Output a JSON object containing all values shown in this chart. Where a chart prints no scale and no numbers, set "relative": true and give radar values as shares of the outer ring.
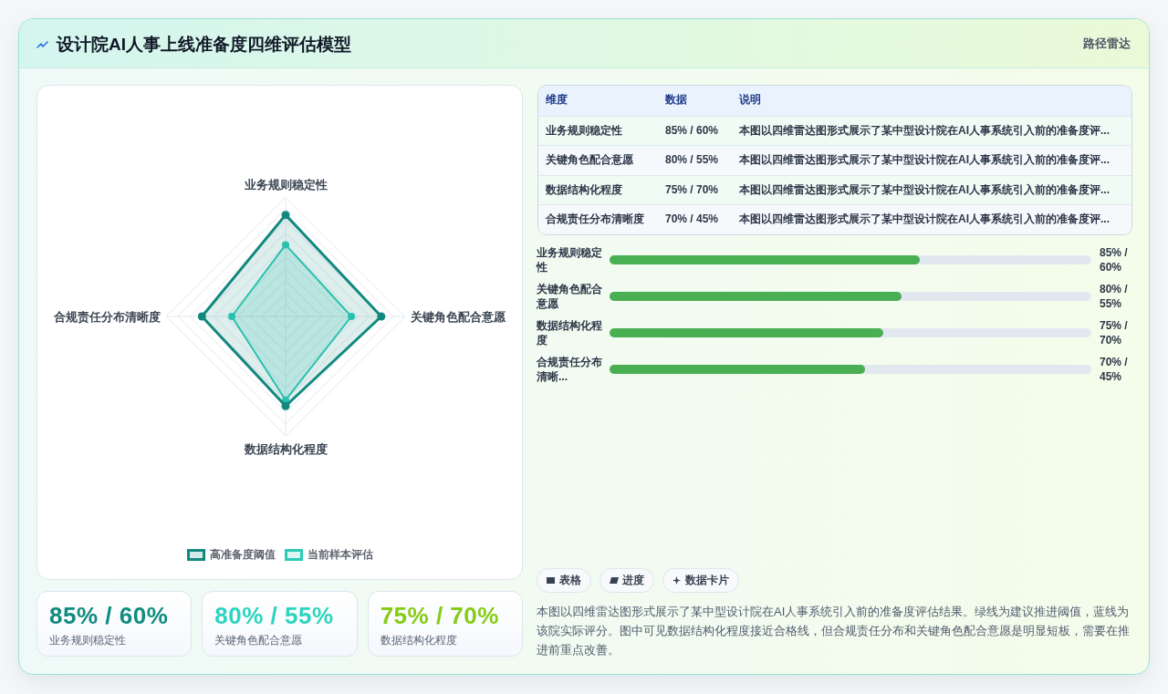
{
  "chart_data": [
    {
      "type": "radar",
      "title": "设计院AI人事上线准备度四维评估模型",
      "annotations": [
        "路径雷达"
      ],
      "categories": [
        "业务规则稳定性",
        "关键角色配合意愿",
        "数据结构化程度",
        "合规责任分布清晰度"
      ],
      "relative": true,
      "series": [
        {
          "name": "高准备度阈值",
          "color": "#12897e",
          "values": [
            0.85,
            0.8,
            0.75,
            0.7
          ]
        },
        {
          "name": "当前样本评估",
          "color": "#2dcbb6",
          "values": [
            0.6,
            0.55,
            0.7,
            0.45
          ]
        }
      ],
      "legend": "bottom",
      "marker": "circle",
      "grid": true
    },
    {
      "type": "other",
      "annotations": [
        "维度",
        "数据",
        "说明",
        "业务规则稳定性",
        "85% / 60%",
        "本图以四维雷达图形式展示了某中型设计院在AI人事系统引入前的准备度评...",
        "关键角色配合意愿",
        "80% / 55%",
        "本图以四维雷达图形式展示了某中型设计院在AI人事系统引入前的准备度评...",
        "数据结构化程度",
        "75% / 70%",
        "本图以四维雷达图形式展示了某中型设计院在AI人事系统引入前的准备度评...",
        "合规责任分布清晰度",
        "70% / 45%",
        "本图以四维雷达图形式展示了某中型设计院在AI人事系统引入前的准备度评..."
      ]
    },
    {
      "type": "bar",
      "orientation": "horizontal",
      "categories": [
        "业务规则稳定性",
        "关键角色配合意愿",
        "数据结构化程度",
        "合规责任分布清晰..."
      ],
      "values": [
        85,
        80,
        75,
        70
      ],
      "value_labels": [
        "85% / 60%",
        "80% / 55%",
        "75% / 70%",
        "70% / 45%"
      ],
      "color": "#4aae52",
      "xlim": [
        0,
        132
      ],
      "tick_labels": "y"
    },
    {
      "type": "other",
      "annotations": [
        "85% / 60%",
        "业务规则稳定性",
        "80% / 55%",
        "关键角色配合意愿",
        "75% / 70%",
        "数据结构化程度"
      ],
      "colors": [
        "#0f8b7f",
        "#2dd4bf",
        "#84cc16"
      ]
    },
    {
      "type": "other",
      "annotations": [
        "表格",
        "进度",
        "数据卡片",
        "本图以四维雷达图形式展示了某中型设计院在AI人事系统引入前的准备度评估结果。绿线为建议推进阈值，蓝线为该院实际评分。图中可见数据结构化程度接近合格线，但合规责任分布和关键角色配合意愿是明显短板，需要在推进前重点改善。"
      ]
    }
  ]
}
